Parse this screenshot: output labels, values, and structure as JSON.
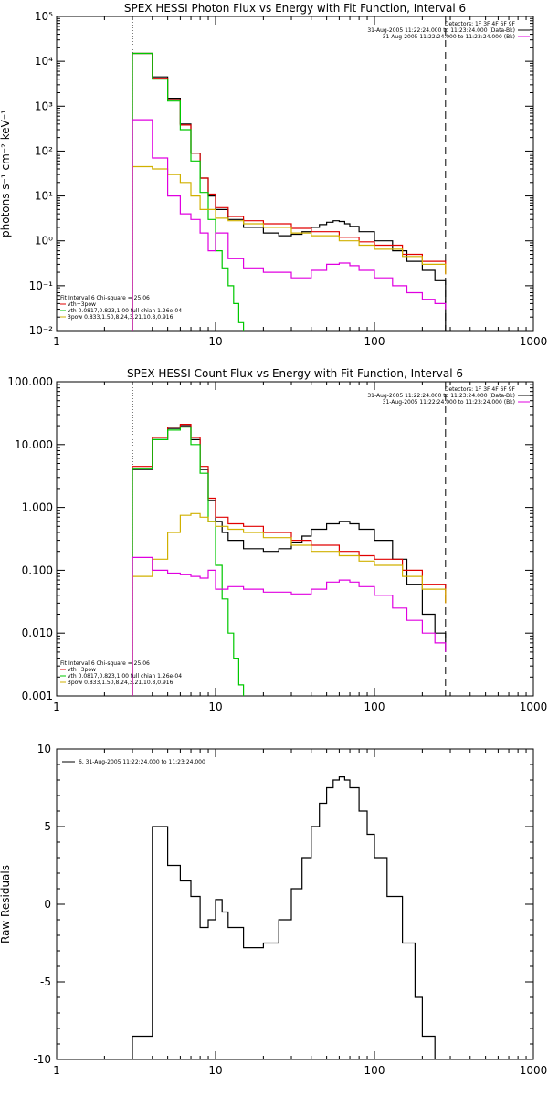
{
  "chart_data": [
    {
      "type": "line",
      "title": "SPEX HESSI Photon Flux vs Energy with Fit Function, Interval 6",
      "xlabel": "",
      "ylabel": "photons s⁻¹ cm⁻² keV⁻¹",
      "xscale": "log",
      "yscale": "log",
      "xlim": [
        1,
        1000
      ],
      "ylim": [
        0.01,
        100000
      ],
      "xtick_labels": [
        "1",
        "10",
        "100",
        "1000"
      ],
      "ytick_labels": [
        "10⁻²",
        "10⁻¹",
        "10⁰",
        "10¹",
        "10²",
        "10³",
        "10⁴",
        "10⁵"
      ],
      "vlines": [
        3,
        280
      ],
      "legend_top_right": [
        "Detectors: 1F 3F 4F 6F 9F",
        "31-Aug-2005 11:22:24.000 to 11:23:24.000 (Data-Bk)",
        "31-Aug-2005 11:22:24.000 to 11:23:24.000 (Bk)"
      ],
      "legend_bottom_left": [
        "Fit Interval 6   Chi-square = 25.06",
        "vth+3pow",
        "vth 0.0817,0.823,1.00  full chian 1.26e-04",
        "3pow 0.833,1.50,8.24,3.21,10.8,0.916"
      ],
      "series": [
        {
          "name": "Data-Bk",
          "color": "#000000",
          "x": [
            3,
            4,
            5,
            6,
            7,
            8,
            9,
            10,
            12,
            15,
            20,
            25,
            30,
            35,
            40,
            45,
            50,
            55,
            60,
            65,
            70,
            80,
            100,
            130,
            160,
            200,
            240,
            280
          ],
          "y": [
            15000,
            4500,
            1500,
            400,
            90,
            25,
            10,
            5,
            3,
            2,
            1.5,
            1.3,
            1.4,
            1.6,
            2.0,
            2.3,
            2.6,
            2.8,
            2.7,
            2.4,
            2.1,
            1.6,
            1.0,
            0.6,
            0.35,
            0.22,
            0.13,
            0.01
          ]
        },
        {
          "name": "vth+3pow",
          "color": "#e00000",
          "x": [
            3,
            4,
            5,
            6,
            7,
            8,
            9,
            10,
            12,
            15,
            20,
            30,
            40,
            60,
            80,
            100,
            150,
            200,
            280
          ],
          "y": [
            15000,
            4200,
            1400,
            380,
            90,
            25,
            11,
            5.5,
            3.5,
            2.8,
            2.4,
            1.9,
            1.6,
            1.2,
            0.95,
            0.8,
            0.5,
            0.35,
            0.18
          ]
        },
        {
          "name": "vth",
          "color": "#00c800",
          "x": [
            3,
            4,
            5,
            6,
            7,
            8,
            9,
            10,
            11,
            12,
            13,
            14,
            15
          ],
          "y": [
            15000,
            4000,
            1300,
            300,
            60,
            12,
            3,
            0.6,
            0.25,
            0.1,
            0.04,
            0.015,
            0.01
          ]
        },
        {
          "name": "3pow",
          "color": "#d0b000",
          "x": [
            3,
            4,
            5,
            6,
            7,
            8,
            10,
            12,
            15,
            20,
            30,
            40,
            60,
            80,
            100,
            150,
            200,
            280
          ],
          "y": [
            45,
            40,
            30,
            20,
            10,
            5,
            3.2,
            2.8,
            2.4,
            2.0,
            1.5,
            1.3,
            1.0,
            0.8,
            0.65,
            0.45,
            0.3,
            0.18
          ]
        },
        {
          "name": "Bk",
          "color": "#e000e0",
          "x": [
            3,
            4,
            5,
            6,
            7,
            8,
            9,
            10,
            12,
            15,
            20,
            30,
            40,
            50,
            60,
            70,
            80,
            100,
            130,
            160,
            200,
            240,
            280
          ],
          "y": [
            500,
            70,
            10,
            4,
            3,
            1.5,
            0.6,
            1.5,
            0.4,
            0.25,
            0.2,
            0.15,
            0.22,
            0.3,
            0.32,
            0.28,
            0.22,
            0.15,
            0.1,
            0.07,
            0.05,
            0.04,
            0.03
          ]
        }
      ]
    },
    {
      "type": "line",
      "title": "SPEX HESSI Count Flux vs Energy with Fit Function, Interval 6",
      "xlabel": "",
      "ylabel": "",
      "xscale": "log",
      "yscale": "log",
      "xlim": [
        1,
        1000
      ],
      "ylim": [
        0.001,
        100
      ],
      "xtick_labels": [
        "1",
        "10",
        "100",
        "1000"
      ],
      "ytick_labels": [
        "0.001",
        "0.010",
        "0.100",
        "1.000",
        "10.000",
        "100.000"
      ],
      "vlines": [
        3,
        280
      ],
      "legend_top_right": [
        "Detectors: 1F 3F 4F 6F 9F",
        "31-Aug-2005 11:22:24.000 to 11:23:24.000 (Data-Bk)",
        "31-Aug-2005 11:22:24.000 to 11:23:24.000 (Bk)"
      ],
      "legend_bottom_left": [
        "Fit Interval 6   Chi-square = 25.06",
        "vth+3pow",
        "vth 0.0817,0.823,1.00  full chian 1.26e-04",
        "3pow 0.833,1.50,8.24,3.21,10.8,0.916"
      ],
      "series": [
        {
          "name": "Data-Bk",
          "color": "#000000",
          "x": [
            3,
            4,
            5,
            6,
            7,
            8,
            9,
            10,
            11,
            12,
            15,
            20,
            25,
            30,
            35,
            40,
            50,
            60,
            70,
            80,
            100,
            130,
            160,
            200,
            240,
            280
          ],
          "y": [
            4.0,
            12,
            18,
            20,
            12,
            4,
            1.3,
            0.6,
            0.4,
            0.3,
            0.22,
            0.2,
            0.22,
            0.28,
            0.35,
            0.45,
            0.55,
            0.6,
            0.55,
            0.45,
            0.3,
            0.15,
            0.06,
            0.02,
            0.01,
            0.005
          ]
        },
        {
          "name": "vth+3pow",
          "color": "#e00000",
          "x": [
            3,
            4,
            5,
            6,
            7,
            8,
            9,
            10,
            12,
            15,
            20,
            30,
            40,
            60,
            80,
            100,
            150,
            200,
            280
          ],
          "y": [
            4.5,
            13,
            19,
            21,
            13,
            4.5,
            1.4,
            0.7,
            0.55,
            0.5,
            0.4,
            0.3,
            0.25,
            0.2,
            0.17,
            0.15,
            0.1,
            0.06,
            0.03
          ]
        },
        {
          "name": "vth",
          "color": "#00c800",
          "x": [
            3,
            4,
            5,
            6,
            7,
            8,
            9,
            10,
            11,
            12,
            13,
            14,
            15
          ],
          "y": [
            4.2,
            12,
            17,
            19,
            10,
            3.5,
            0.6,
            0.12,
            0.035,
            0.01,
            0.004,
            0.0015,
            0.001
          ]
        },
        {
          "name": "3pow",
          "color": "#d0b000",
          "x": [
            3,
            4,
            5,
            6,
            7,
            8,
            9,
            10,
            12,
            15,
            20,
            30,
            40,
            60,
            80,
            100,
            150,
            200,
            280
          ],
          "y": [
            0.08,
            0.15,
            0.4,
            0.75,
            0.8,
            0.7,
            0.6,
            0.5,
            0.45,
            0.4,
            0.33,
            0.25,
            0.2,
            0.17,
            0.14,
            0.12,
            0.08,
            0.05,
            0.03
          ]
        },
        {
          "name": "Bk",
          "color": "#e000e0",
          "x": [
            3,
            4,
            5,
            6,
            7,
            8,
            9,
            10,
            12,
            15,
            20,
            30,
            40,
            50,
            60,
            70,
            80,
            100,
            130,
            160,
            200,
            240,
            280
          ],
          "y": [
            0.16,
            0.1,
            0.09,
            0.085,
            0.08,
            0.075,
            0.1,
            0.05,
            0.055,
            0.05,
            0.045,
            0.042,
            0.05,
            0.065,
            0.07,
            0.065,
            0.055,
            0.04,
            0.025,
            0.016,
            0.01,
            0.007,
            0.005
          ]
        }
      ]
    },
    {
      "type": "line",
      "title": "",
      "xlabel": "",
      "ylabel": "Raw Residuals",
      "xscale": "log",
      "yscale": "linear",
      "xlim": [
        1,
        1000
      ],
      "ylim": [
        -10,
        10
      ],
      "xtick_labels": [
        "1",
        "10",
        "100",
        "1000"
      ],
      "ytick_labels": [
        "-10",
        "-5",
        "0",
        "5",
        "10"
      ],
      "legend_top_left": [
        "6, 31-Aug-2005 11:22:24.000 to 11:23:24.000"
      ],
      "series": [
        {
          "name": "",
          "color": "#000000",
          "x": [
            3,
            4,
            5,
            6,
            7,
            8,
            9,
            10,
            11,
            12,
            15,
            20,
            25,
            30,
            35,
            40,
            45,
            50,
            55,
            60,
            65,
            70,
            80,
            90,
            100,
            120,
            150,
            180,
            200,
            240,
            280
          ],
          "y": [
            -8.5,
            5.0,
            2.5,
            1.5,
            0.5,
            -1.5,
            -1.0,
            0.3,
            -0.5,
            -1.5,
            -2.8,
            -2.5,
            -1.0,
            1.0,
            3.0,
            5.0,
            6.5,
            7.5,
            8.0,
            8.2,
            8.0,
            7.5,
            6.0,
            4.5,
            3.0,
            0.5,
            -2.5,
            -6.0,
            -8.5,
            -10.0,
            -10.0
          ]
        }
      ]
    }
  ]
}
